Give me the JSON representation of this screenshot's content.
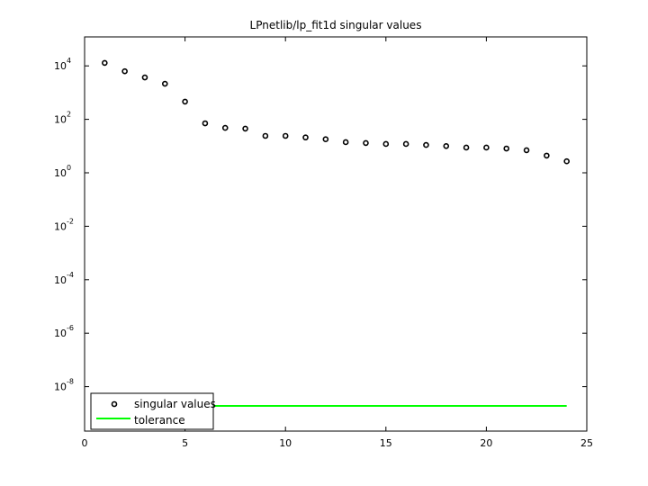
{
  "figure": {
    "title": "LPnetlib/lp_fit1d singular values",
    "background": "#ffffff"
  },
  "legend": {
    "items": [
      {
        "label": "singular values",
        "marker": "circle-open",
        "color": "#000000"
      },
      {
        "label": "tolerance",
        "marker": "line",
        "color": "#00ff00"
      }
    ],
    "position": "lower-left"
  },
  "chart_data": {
    "type": "scatter",
    "title": "LPnetlib/lp_fit1d singular values",
    "xlabel": "",
    "ylabel": "",
    "xlim": [
      0,
      25
    ],
    "ylim": [
      2.2e-10,
      120000.0
    ],
    "yscale": "log",
    "grid": false,
    "legend_position": "lower-left",
    "x_ticks": [
      0,
      5,
      10,
      15,
      20,
      25
    ],
    "x_tick_labels": [
      "0",
      "5",
      "10",
      "15",
      "20",
      "25"
    ],
    "y_ticks": [
      10000.0,
      100.0,
      1.0,
      0.01,
      0.0001,
      1e-06,
      1e-08
    ],
    "y_tick_labels": [
      {
        "base": "10",
        "exp": "4"
      },
      {
        "base": "10",
        "exp": "2"
      },
      {
        "base": "10",
        "exp": "0"
      },
      {
        "base": "10",
        "exp": "-2"
      },
      {
        "base": "10",
        "exp": "-4"
      },
      {
        "base": "10",
        "exp": "-6"
      },
      {
        "base": "10",
        "exp": "-8"
      }
    ],
    "series": [
      {
        "name": "singular values",
        "style": "open-circle",
        "color": "#000000",
        "x": [
          1,
          2,
          3,
          4,
          5,
          6,
          7,
          8,
          9,
          10,
          11,
          12,
          13,
          14,
          15,
          16,
          17,
          18,
          19,
          20,
          21,
          22,
          23,
          24
        ],
        "values": [
          12900,
          6300,
          3700,
          2150,
          460,
          71,
          48,
          45,
          24,
          24,
          21,
          18,
          14,
          13,
          12,
          12,
          11,
          10,
          8.8,
          8.8,
          8.1,
          7.0,
          4.4,
          2.7
        ]
      },
      {
        "name": "tolerance",
        "style": "line",
        "color": "#00ff00",
        "x": [
          1,
          24
        ],
        "values": [
          1.9e-09,
          1.9e-09
        ]
      }
    ]
  }
}
